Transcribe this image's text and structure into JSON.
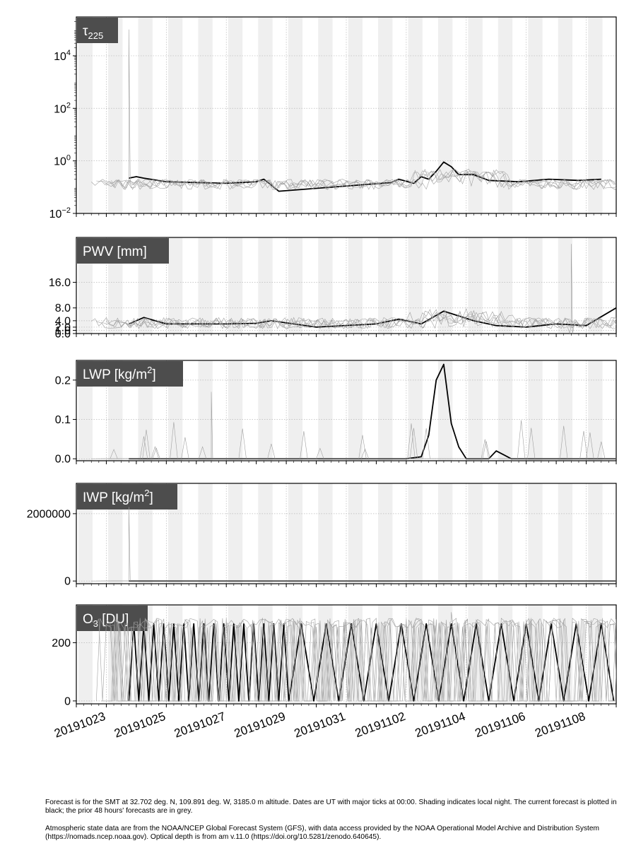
{
  "chart_data": {
    "type": "line",
    "x_axis": {
      "start": "20191022",
      "end": "20191109",
      "major_tick_labels": [
        "20191023",
        "20191025",
        "20191027",
        "20191029",
        "20191031",
        "20191102",
        "20191104",
        "20191106",
        "20191108"
      ],
      "grid": true
    },
    "night_shading": true,
    "panels": [
      {
        "id": "tau",
        "label": "τ",
        "label_sub": "225",
        "scale": "log",
        "ylim": [
          0.01,
          300000
        ],
        "ticks": [
          0.01,
          1,
          100,
          10000
        ],
        "tick_labels": [
          {
            "base": "10",
            "exp": "−2"
          },
          {
            "base": "10",
            "exp": "0"
          },
          {
            "base": "10",
            "exp": "2"
          },
          {
            "base": "10",
            "exp": "4"
          }
        ],
        "current_forecast": [
          {
            "x": "2019-10-23T18",
            "y": 0.22
          },
          {
            "x": "2019-10-24T00",
            "y": 0.25
          },
          {
            "x": "2019-10-24T06",
            "y": 0.22
          },
          {
            "x": "2019-10-25T00",
            "y": 0.16
          },
          {
            "x": "2019-10-26T00",
            "y": 0.15
          },
          {
            "x": "2019-10-27T00",
            "y": 0.14
          },
          {
            "x": "2019-10-28T00",
            "y": 0.16
          },
          {
            "x": "2019-10-28T06",
            "y": 0.2
          },
          {
            "x": "2019-10-28T12",
            "y": 0.12
          },
          {
            "x": "2019-10-28T18",
            "y": 0.07
          },
          {
            "x": "2019-11-01T12",
            "y": 0.15
          },
          {
            "x": "2019-11-01T18",
            "y": 0.2
          },
          {
            "x": "2019-11-02T06",
            "y": 0.14
          },
          {
            "x": "2019-11-02T12",
            "y": 0.25
          },
          {
            "x": "2019-11-02T18",
            "y": 0.2
          },
          {
            "x": "2019-11-03T00",
            "y": 0.4
          },
          {
            "x": "2019-11-03T06",
            "y": 0.9
          },
          {
            "x": "2019-11-03T12",
            "y": 0.6
          },
          {
            "x": "2019-11-03T18",
            "y": 0.3
          },
          {
            "x": "2019-11-04T06",
            "y": 0.3
          },
          {
            "x": "2019-11-04T18",
            "y": 0.18
          },
          {
            "x": "2019-11-05T18",
            "y": 0.16
          },
          {
            "x": "2019-11-06T18",
            "y": 0.2
          },
          {
            "x": "2019-11-07T18",
            "y": 0.18
          },
          {
            "x": "2019-11-08T12",
            "y": 0.2
          }
        ],
        "prior_forecasts_peak": {
          "x": "2019-10-23T18",
          "y": 100000
        }
      },
      {
        "id": "pwv",
        "label": "PWV [mm]",
        "scale": "linear",
        "ylim": [
          0,
          30
        ],
        "ticks": [
          0.0,
          1.0,
          2.0,
          4.0,
          8.0,
          16.0
        ],
        "tick_labels": [
          "0.0",
          "1.0",
          "2.0",
          "4.0",
          "8.0",
          "16.0"
        ],
        "current_forecast": [
          {
            "x": "2019-10-23T18",
            "y": 3.0
          },
          {
            "x": "2019-10-24T06",
            "y": 5.0
          },
          {
            "x": "2019-10-25T00",
            "y": 3.0
          },
          {
            "x": "2019-10-26T00",
            "y": 3.0
          },
          {
            "x": "2019-10-27T00",
            "y": 3.0
          },
          {
            "x": "2019-10-28T00",
            "y": 3.2
          },
          {
            "x": "2019-10-28T12",
            "y": 4.0
          },
          {
            "x": "2019-10-30T00",
            "y": 2.0
          },
          {
            "x": "2019-11-01T00",
            "y": 3.0
          },
          {
            "x": "2019-11-01T18",
            "y": 4.5
          },
          {
            "x": "2019-11-02T12",
            "y": 3.0
          },
          {
            "x": "2019-11-03T06",
            "y": 7.0
          },
          {
            "x": "2019-11-03T18",
            "y": 5.5
          },
          {
            "x": "2019-11-04T06",
            "y": 4.0
          },
          {
            "x": "2019-11-05T00",
            "y": 2.5
          },
          {
            "x": "2019-11-06T00",
            "y": 2.0
          },
          {
            "x": "2019-11-07T00",
            "y": 3.0
          },
          {
            "x": "2019-11-08T00",
            "y": 2.5
          },
          {
            "x": "2019-11-09T00",
            "y": 8.0
          }
        ],
        "prior_forecasts_peak": {
          "x": "2019-11-07T12",
          "y": 28.0
        }
      },
      {
        "id": "lwp",
        "label": "LWP [kg/m",
        "label_sup": "2",
        "label_tail": "]",
        "scale": "linear",
        "ylim": [
          -0.005,
          0.25
        ],
        "ticks": [
          0.0,
          0.1,
          0.2
        ],
        "tick_labels": [
          "0.0",
          "0.1",
          "0.2"
        ],
        "current_forecast": [
          {
            "x": "2019-10-23T18",
            "y": 0.0
          },
          {
            "x": "2019-11-02T00",
            "y": 0.0
          },
          {
            "x": "2019-11-02T12",
            "y": 0.005
          },
          {
            "x": "2019-11-02T18",
            "y": 0.06
          },
          {
            "x": "2019-11-03T00",
            "y": 0.2
          },
          {
            "x": "2019-11-03T06",
            "y": 0.24
          },
          {
            "x": "2019-11-03T12",
            "y": 0.09
          },
          {
            "x": "2019-11-03T18",
            "y": 0.03
          },
          {
            "x": "2019-11-04T00",
            "y": 0.0
          },
          {
            "x": "2019-11-04T18",
            "y": 0.0
          },
          {
            "x": "2019-11-05T00",
            "y": 0.02
          },
          {
            "x": "2019-11-05T06",
            "y": 0.01
          },
          {
            "x": "2019-11-05T12",
            "y": 0.0
          },
          {
            "x": "2019-11-09T00",
            "y": 0.0
          }
        ],
        "prior_forecasts_peak": {
          "x": "2019-10-26T12",
          "y": 0.17
        }
      },
      {
        "id": "iwp",
        "label": "IWP [kg/m",
        "label_sup": "2",
        "label_tail": "]",
        "scale": "linear",
        "ylim": [
          -80000,
          2900000
        ],
        "ticks": [
          0,
          2000000
        ],
        "tick_labels": [
          "0",
          "2000000"
        ],
        "current_forecast": [
          {
            "x": "2019-10-23T18",
            "y": 0
          },
          {
            "x": "2019-11-09T00",
            "y": 0
          }
        ],
        "prior_forecasts_peak": {
          "x": "2019-10-23T18",
          "y": 2200000
        }
      },
      {
        "id": "o3",
        "label": "O",
        "label_sub": "3",
        "label_tail": " [DU]",
        "scale": "linear",
        "ylim": [
          -10,
          330
        ],
        "ticks": [
          0,
          200
        ],
        "tick_labels": [
          "0",
          "200"
        ],
        "current_forecast_baseline": 0,
        "current_forecast_plateau": 265,
        "prior_forecasts_peak": {
          "x": "2019-11-03T12",
          "y": 305
        }
      }
    ]
  },
  "caption": {
    "line1": "Forecast is for the SMT at 32.702 deg. N, 109.891 deg. W, 3185.0 m altitude.  Dates are UT with major ticks at 00:00.  Shading indicates local night.  The current forecast is plotted in black; the prior 48 hours' forecasts are in grey.",
    "line2": "Atmospheric state data are from the NOAA/NCEP Global Forecast System (GFS), with data access provided by the NOAA Operational Model Archive and Distribution System (https://nomads.ncep.noaa.gov).  Optical depth is from am v.11.0 (https://doi.org/10.5281/zenodo.640645)."
  },
  "colors": {
    "current_forecast": "#000000",
    "prior_forecasts": "#a0a0a0",
    "night_shading": "#efefef",
    "label_box": "#4d4d4d",
    "label_text": "#ffffff",
    "grid": "#b8b8b8"
  }
}
